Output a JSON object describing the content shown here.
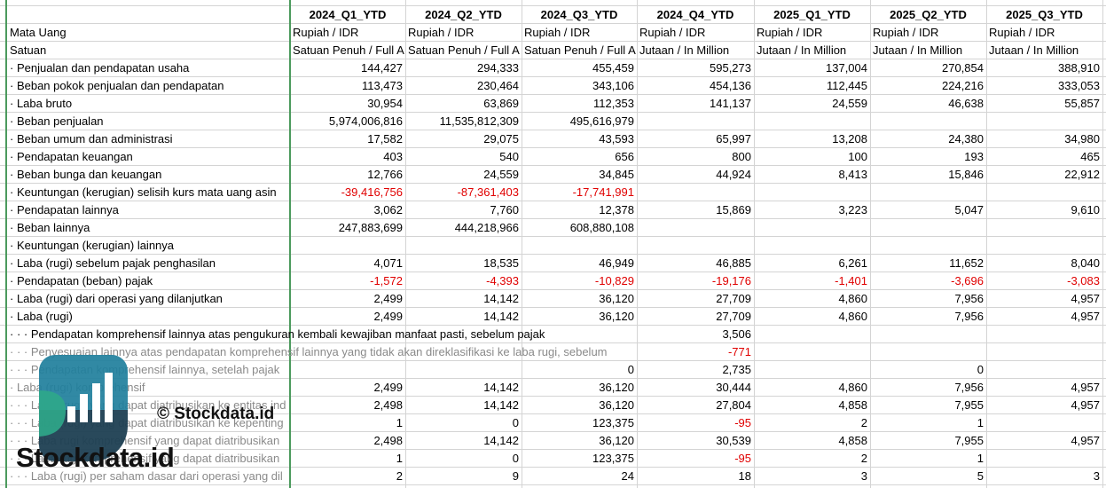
{
  "table": {
    "columns": [
      "2024_Q1_YTD",
      "2024_Q2_YTD",
      "2024_Q3_YTD",
      "2024_Q4_YTD",
      "2025_Q1_YTD",
      "2025_Q2_YTD",
      "2025_Q3_YTD"
    ],
    "rows": [
      {
        "label": "Mata Uang",
        "cells": [
          "Rupiah / IDR",
          "Rupiah / IDR",
          "Rupiah / IDR",
          "Rupiah / IDR",
          "Rupiah / IDR",
          "Rupiah / IDR",
          "Rupiah / IDR"
        ]
      },
      {
        "label": "Satuan",
        "cells": [
          "Satuan Penuh / Full A",
          "Satuan Penuh / Full A",
          "Satuan Penuh / Full A",
          "Jutaan / In Million",
          "Jutaan / In Million",
          "Jutaan / In Million",
          "Jutaan / In Million"
        ]
      },
      {
        "label": "· Penjualan dan pendapatan usaha",
        "cells": [
          "144,427",
          "294,333",
          "455,459",
          "595,273",
          "137,004",
          "270,854",
          "388,910"
        ]
      },
      {
        "label": "· Beban pokok penjualan dan pendapatan",
        "cells": [
          "113,473",
          "230,464",
          "343,106",
          "454,136",
          "112,445",
          "224,216",
          "333,053"
        ]
      },
      {
        "label": "· Laba bruto",
        "cells": [
          "30,954",
          "63,869",
          "112,353",
          "141,137",
          "24,559",
          "46,638",
          "55,857"
        ]
      },
      {
        "label": "· Beban penjualan",
        "cells": [
          "5,974,006,816",
          "11,535,812,309",
          "495,616,979",
          null,
          null,
          null,
          null
        ]
      },
      {
        "label": "· Beban umum dan administrasi",
        "cells": [
          "17,582",
          "29,075",
          "43,593",
          "65,997",
          "13,208",
          "24,380",
          "34,980"
        ]
      },
      {
        "label": "· Pendapatan keuangan",
        "cells": [
          "403",
          "540",
          "656",
          "800",
          "100",
          "193",
          "465"
        ]
      },
      {
        "label": "· Beban bunga dan keuangan",
        "cells": [
          "12,766",
          "24,559",
          "34,845",
          "44,924",
          "8,413",
          "15,846",
          "22,912"
        ]
      },
      {
        "label": "· Keuntungan (kerugian) selisih kurs mata uang asin",
        "cells": [
          "-39,416,756",
          "-87,361,403",
          "-17,741,991",
          null,
          null,
          null,
          null
        ]
      },
      {
        "label": "· Pendapatan lainnya",
        "cells": [
          "3,062",
          "7,760",
          "12,378",
          "15,869",
          "3,223",
          "5,047",
          "9,610"
        ]
      },
      {
        "label": "· Beban lainnya",
        "cells": [
          "247,883,699",
          "444,218,966",
          "608,880,108",
          null,
          null,
          null,
          null
        ]
      },
      {
        "label": "· Keuntungan (kerugian) lainnya",
        "cells": [
          null,
          null,
          null,
          null,
          null,
          null,
          null
        ]
      },
      {
        "label": "· Laba (rugi) sebelum pajak penghasilan",
        "cells": [
          "4,071",
          "18,535",
          "46,949",
          "46,885",
          "6,261",
          "11,652",
          "8,040"
        ]
      },
      {
        "label": "· Pendapatan (beban) pajak",
        "cells": [
          "-1,572",
          "-4,393",
          "-10,829",
          "-19,176",
          "-1,401",
          "-3,696",
          "-3,083"
        ]
      },
      {
        "label": "· Laba (rugi) dari operasi yang dilanjutkan",
        "cells": [
          "2,499",
          "14,142",
          "36,120",
          "27,709",
          "4,860",
          "7,956",
          "4,957"
        ]
      },
      {
        "label": "· Laba (rugi)",
        "cells": [
          "2,499",
          "14,142",
          "36,120",
          "27,709",
          "4,860",
          "7,956",
          "4,957"
        ]
      },
      {
        "label": "· · · Pendapatan komprehensif lainnya atas pengukuran kembali kewajiban manfaat pasti, sebelum pajak",
        "cells": [
          null,
          null,
          null,
          "3,506",
          null,
          null,
          null
        ]
      },
      {
        "label": "· · · Penyesuaian lainnya atas pendapatan komprehensif lainnya yang tidak akan direklasifikasi ke laba rugi, sebelum",
        "cells": [
          null,
          null,
          null,
          "-771",
          null,
          null,
          null
        ]
      },
      {
        "label": "· · · Pendapatan komprehensif lainnya, setelah pajak",
        "cells": [
          null,
          null,
          "0",
          "2,735",
          null,
          "0",
          null
        ]
      },
      {
        "label": "· Laba (rugi) komprehensif",
        "cells": [
          "2,499",
          "14,142",
          "36,120",
          "30,444",
          "4,860",
          "7,956",
          "4,957"
        ]
      },
      {
        "label": "· · · Laba (rugi) yang dapat diatribusikan ke entitas ind",
        "cells": [
          "2,498",
          "14,142",
          "36,120",
          "27,804",
          "4,858",
          "7,955",
          "4,957"
        ]
      },
      {
        "label": "· · · Laba (rugi) yang dapat diatribusikan ke kepenting",
        "cells": [
          "1",
          "0",
          "123,375",
          "-95",
          "2",
          "1",
          null
        ]
      },
      {
        "label": "· · · Laba rugi komprehensif yang dapat diatribusikan",
        "cells": [
          "2,498",
          "14,142",
          "36,120",
          "30,539",
          "4,858",
          "7,955",
          "4,957"
        ]
      },
      {
        "label": "· · · Laba rugi komprehensif yang dapat diatribusikan",
        "cells": [
          "1",
          "0",
          "123,375",
          "-95",
          "2",
          "1",
          null
        ]
      },
      {
        "label": "· · · Laba (rugi) per saham dasar dari operasi yang dil",
        "cells": [
          "2",
          "9",
          "24",
          "18",
          "3",
          "5",
          "3"
        ]
      }
    ]
  },
  "watermark": {
    "caption": "© Stockdata.id",
    "brand": "Stockdata.id"
  }
}
